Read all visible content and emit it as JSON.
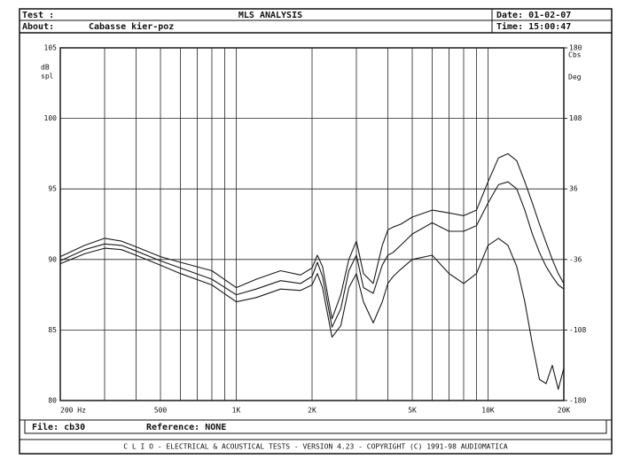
{
  "header": {
    "test_label": "Test :",
    "about_label": "About:",
    "about": "Cabasse kier-poz",
    "date": "Date: 01-02-07",
    "time": "Time: 15:00:47"
  },
  "footer": {
    "file": "File: cb30",
    "reference": "Reference: NONE",
    "banner": "C L I O  -  ELECTRICAL & ACOUSTICAL TESTS  -  VERSION 4.23  -  COPYRIGHT (C) 1991-98 AUDIOMATICA"
  },
  "chart_data": {
    "type": "line",
    "title": "MLS ANALYSIS",
    "y_label": [
      "dB",
      "spl"
    ],
    "y2_label": [
      "Cbs",
      "Deg"
    ],
    "log_x": true,
    "grid": true,
    "color": "#1a1a1a",
    "xlim": [
      200,
      20000
    ],
    "xticks": [
      {
        "value": 200,
        "label": "200  Hz"
      },
      500,
      {
        "value": 1000,
        "label": "1K"
      },
      {
        "value": 2000,
        "label": "2K"
      },
      {
        "value": 5000,
        "label": "5K"
      },
      {
        "value": 10000,
        "label": "10K"
      },
      {
        "value": 20000,
        "label": "20K"
      }
    ],
    "xgrid": [
      300,
      400,
      600,
      700,
      800,
      900,
      3000,
      4000,
      6000,
      7000,
      8000,
      9000
    ],
    "ylim": [
      80,
      105
    ],
    "yticks": [
      80,
      85,
      90,
      95,
      100,
      105
    ],
    "y2lim": [
      -180,
      180
    ],
    "y2ticks": [
      -180,
      -108,
      -36,
      36,
      108,
      180
    ],
    "x": [
      200,
      250,
      300,
      350,
      400,
      500,
      600,
      800,
      1000,
      1200,
      1500,
      1800,
      2000,
      2100,
      2200,
      2400,
      2600,
      2800,
      3000,
      3200,
      3500,
      3800,
      4000,
      4200,
      4500,
      5000,
      6000,
      7000,
      8000,
      9000,
      10000,
      11000,
      12000,
      13000,
      14000,
      15000,
      16000,
      17000,
      18000,
      19000,
      20000
    ],
    "series": [
      {
        "color": "#1a1a1a",
        "values": [
          90.2,
          91.0,
          91.5,
          91.3,
          90.9,
          90.2,
          89.8,
          89.2,
          88.0,
          88.6,
          89.2,
          88.9,
          89.4,
          90.3,
          89.5,
          85.8,
          87.5,
          90.0,
          91.3,
          89.0,
          88.3,
          91.0,
          92.1,
          92.3,
          92.5,
          93.0,
          93.5,
          93.3,
          93.1,
          93.5,
          95.5,
          97.2,
          97.5,
          97.0,
          95.5,
          94.0,
          92.5,
          91.2,
          90.0,
          89.0,
          88.3
        ]
      },
      {
        "color": "#1a1a1a",
        "values": [
          89.9,
          90.7,
          91.1,
          91.0,
          90.6,
          89.9,
          89.4,
          88.6,
          87.5,
          87.9,
          88.5,
          88.3,
          88.8,
          89.8,
          88.8,
          85.2,
          86.5,
          89.2,
          90.3,
          88.0,
          87.6,
          89.6,
          90.3,
          90.5,
          91.0,
          91.8,
          92.6,
          92.0,
          92.0,
          92.4,
          94.0,
          95.3,
          95.5,
          95.0,
          93.5,
          91.8,
          90.5,
          89.5,
          88.8,
          88.2,
          87.9
        ]
      },
      {
        "color": "#1a1a1a",
        "values": [
          89.7,
          90.4,
          90.8,
          90.7,
          90.3,
          89.6,
          89.0,
          88.2,
          87.0,
          87.3,
          87.9,
          87.8,
          88.2,
          89.0,
          88.0,
          84.5,
          85.3,
          88.0,
          89.0,
          87.0,
          85.5,
          87.0,
          88.3,
          88.8,
          89.3,
          90.0,
          90.3,
          89.0,
          88.3,
          89.0,
          91.0,
          91.5,
          91.0,
          89.5,
          87.0,
          84.0,
          81.5,
          81.2,
          82.5,
          80.8,
          82.3
        ]
      }
    ]
  }
}
